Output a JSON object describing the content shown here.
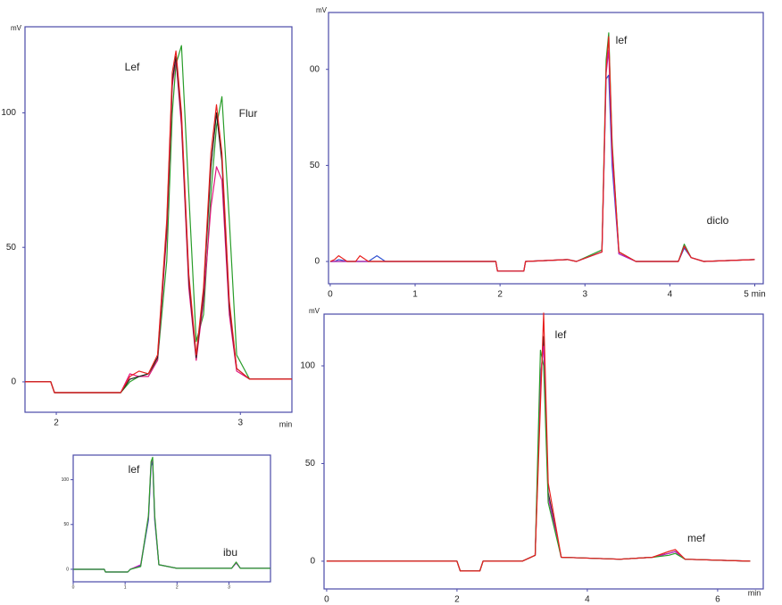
{
  "chart_data": [
    {
      "type": "line",
      "y_label": "mV",
      "x_label": "min",
      "annotations": [
        "Lef",
        "Flur"
      ],
      "xlim": [
        1.83,
        3.28
      ],
      "ylim": [
        -11.3,
        132
      ],
      "xticks": [
        2,
        3
      ],
      "yticks": [
        0,
        50,
        100
      ],
      "x": [
        1.83,
        1.97,
        1.99,
        2.35,
        2.4,
        2.45,
        2.5,
        2.55,
        2.6,
        2.63,
        2.65,
        2.68,
        2.72,
        2.76,
        2.8,
        2.84,
        2.87,
        2.9,
        2.94,
        2.98,
        3.05,
        3.28
      ],
      "series": [
        {
          "color": "#2a9d2a",
          "values": [
            0,
            0,
            -4,
            -4,
            0,
            2,
            3,
            8,
            45,
            100,
            118,
            125,
            70,
            15,
            25,
            70,
            95,
            106,
            60,
            10,
            1,
            1
          ]
        },
        {
          "color": "#e0147d",
          "values": [
            0,
            0,
            -4,
            -4,
            3,
            2,
            2,
            8,
            55,
            110,
            120,
            95,
            35,
            8,
            30,
            65,
            80,
            75,
            25,
            4,
            1,
            1
          ]
        },
        {
          "color": "#222222",
          "values": [
            0,
            0,
            -4,
            -4,
            1,
            2,
            3,
            9,
            58,
            112,
            121,
            98,
            38,
            9,
            33,
            80,
            100,
            82,
            28,
            5,
            1,
            1
          ]
        },
        {
          "color": "#e8201e",
          "values": [
            0,
            0,
            -4,
            -4,
            2,
            4,
            3,
            10,
            60,
            115,
            123,
            100,
            40,
            10,
            35,
            85,
            103,
            85,
            30,
            5,
            1,
            1
          ]
        }
      ]
    },
    {
      "type": "line",
      "y_label": "mV",
      "annotations": [
        "lef",
        "diclo"
      ],
      "xlim": [
        -0.02,
        5.1
      ],
      "ylim": [
        -11.6,
        129.6
      ],
      "xticks": [
        0,
        1,
        2,
        3,
        4,
        {
          "value": 5,
          "label": "5 min"
        }
      ],
      "yticks": [
        0,
        50,
        {
          "value": 100,
          "label": "00"
        }
      ],
      "x": [
        0,
        0.05,
        0.1,
        0.2,
        0.3,
        0.35,
        0.45,
        0.55,
        0.65,
        1.0,
        1.95,
        1.97,
        2.28,
        2.3,
        2.8,
        2.9,
        3.2,
        3.25,
        3.28,
        3.32,
        3.4,
        3.6,
        4.1,
        4.17,
        4.25,
        4.4,
        5.0
      ],
      "series": [
        {
          "color": "#3050d0",
          "values": [
            0,
            0,
            1,
            0,
            0,
            0,
            0,
            3,
            0,
            0,
            0,
            -5,
            -5,
            0,
            1,
            0,
            5,
            95,
            97,
            50,
            4,
            0,
            0,
            7,
            2,
            0,
            1
          ]
        },
        {
          "color": "#2a9d2a",
          "values": [
            0,
            0,
            0,
            0,
            0,
            0,
            0,
            0,
            0,
            0,
            0,
            -5,
            -5,
            0,
            1,
            0,
            6,
            105,
            119,
            62,
            5,
            0,
            0,
            9,
            2,
            0,
            1
          ]
        },
        {
          "color": "#c020c0",
          "values": [
            0,
            0,
            0,
            0,
            0,
            0,
            0,
            0,
            0,
            0,
            0,
            -5,
            -5,
            0,
            1,
            0,
            5,
            98,
            110,
            55,
            4,
            0,
            0,
            8,
            2,
            0,
            1
          ]
        },
        {
          "color": "#e8201e",
          "values": [
            0,
            1,
            3,
            0,
            0,
            3,
            0,
            0,
            0,
            0,
            0,
            -5,
            -5,
            0,
            1,
            0,
            5,
            100,
            117,
            60,
            5,
            0,
            0,
            8,
            2,
            0,
            1
          ]
        }
      ]
    },
    {
      "type": "line",
      "annotations": [
        "lef",
        "ibu"
      ],
      "xlim": [
        0,
        3.8
      ],
      "ylim": [
        -14,
        127.5
      ],
      "xticks": [
        0,
        1,
        2,
        3
      ],
      "yticks": [
        0,
        50,
        100
      ],
      "x": [
        0,
        0.6,
        0.62,
        1.05,
        1.1,
        1.3,
        1.45,
        1.5,
        1.53,
        1.57,
        1.65,
        2.0,
        3.05,
        3.14,
        3.22,
        3.8
      ],
      "series": [
        {
          "color": "#3050d0",
          "values": [
            0,
            0,
            -3,
            -3,
            0,
            4,
            55,
            115,
            120,
            55,
            5,
            1,
            1,
            7,
            1,
            1
          ]
        },
        {
          "color": "#c020c0",
          "values": [
            0,
            0,
            -3,
            -3,
            0,
            5,
            58,
            118,
            122,
            58,
            5,
            1,
            1,
            7,
            1,
            1
          ]
        },
        {
          "color": "#2a9d2a",
          "values": [
            0,
            0,
            -3,
            -3,
            0,
            3,
            60,
            120,
            125,
            60,
            5,
            1,
            1,
            8,
            1,
            1
          ]
        }
      ]
    },
    {
      "type": "line",
      "y_label": "mV",
      "x_label": "min",
      "annotations": [
        "lef",
        "mef"
      ],
      "xlim": [
        -0.04,
        6.7
      ],
      "ylim": [
        -14.2,
        126.5
      ],
      "xticks": [
        0,
        2,
        4,
        6
      ],
      "yticks": [
        0,
        50,
        100
      ],
      "x": [
        0,
        1,
        2,
        2.05,
        2.35,
        2.4,
        3.0,
        3.2,
        3.28,
        3.33,
        3.4,
        3.6,
        4.5,
        5.0,
        5.25,
        5.35,
        5.5,
        6.5
      ],
      "series": [
        {
          "color": "#222222",
          "values": [
            0,
            0,
            0,
            -5,
            -5,
            0,
            0,
            3,
            90,
            115,
            35,
            2,
            1,
            2,
            4,
            5,
            1,
            0
          ]
        },
        {
          "color": "#c020c0",
          "values": [
            0,
            0,
            0,
            -5,
            -5,
            0,
            0,
            3,
            95,
            110,
            33,
            2,
            1,
            2,
            4,
            5,
            1,
            0
          ]
        },
        {
          "color": "#2a9d2a",
          "values": [
            0,
            0,
            0,
            -5,
            -5,
            0,
            0,
            3,
            108,
            100,
            30,
            2,
            1,
            2,
            3,
            4,
            1,
            0
          ]
        },
        {
          "color": "#e8201e",
          "values": [
            0,
            0,
            0,
            -5,
            -5,
            0,
            0,
            3,
            80,
            127,
            40,
            2,
            1,
            2,
            5,
            6,
            1,
            0
          ]
        }
      ]
    }
  ]
}
